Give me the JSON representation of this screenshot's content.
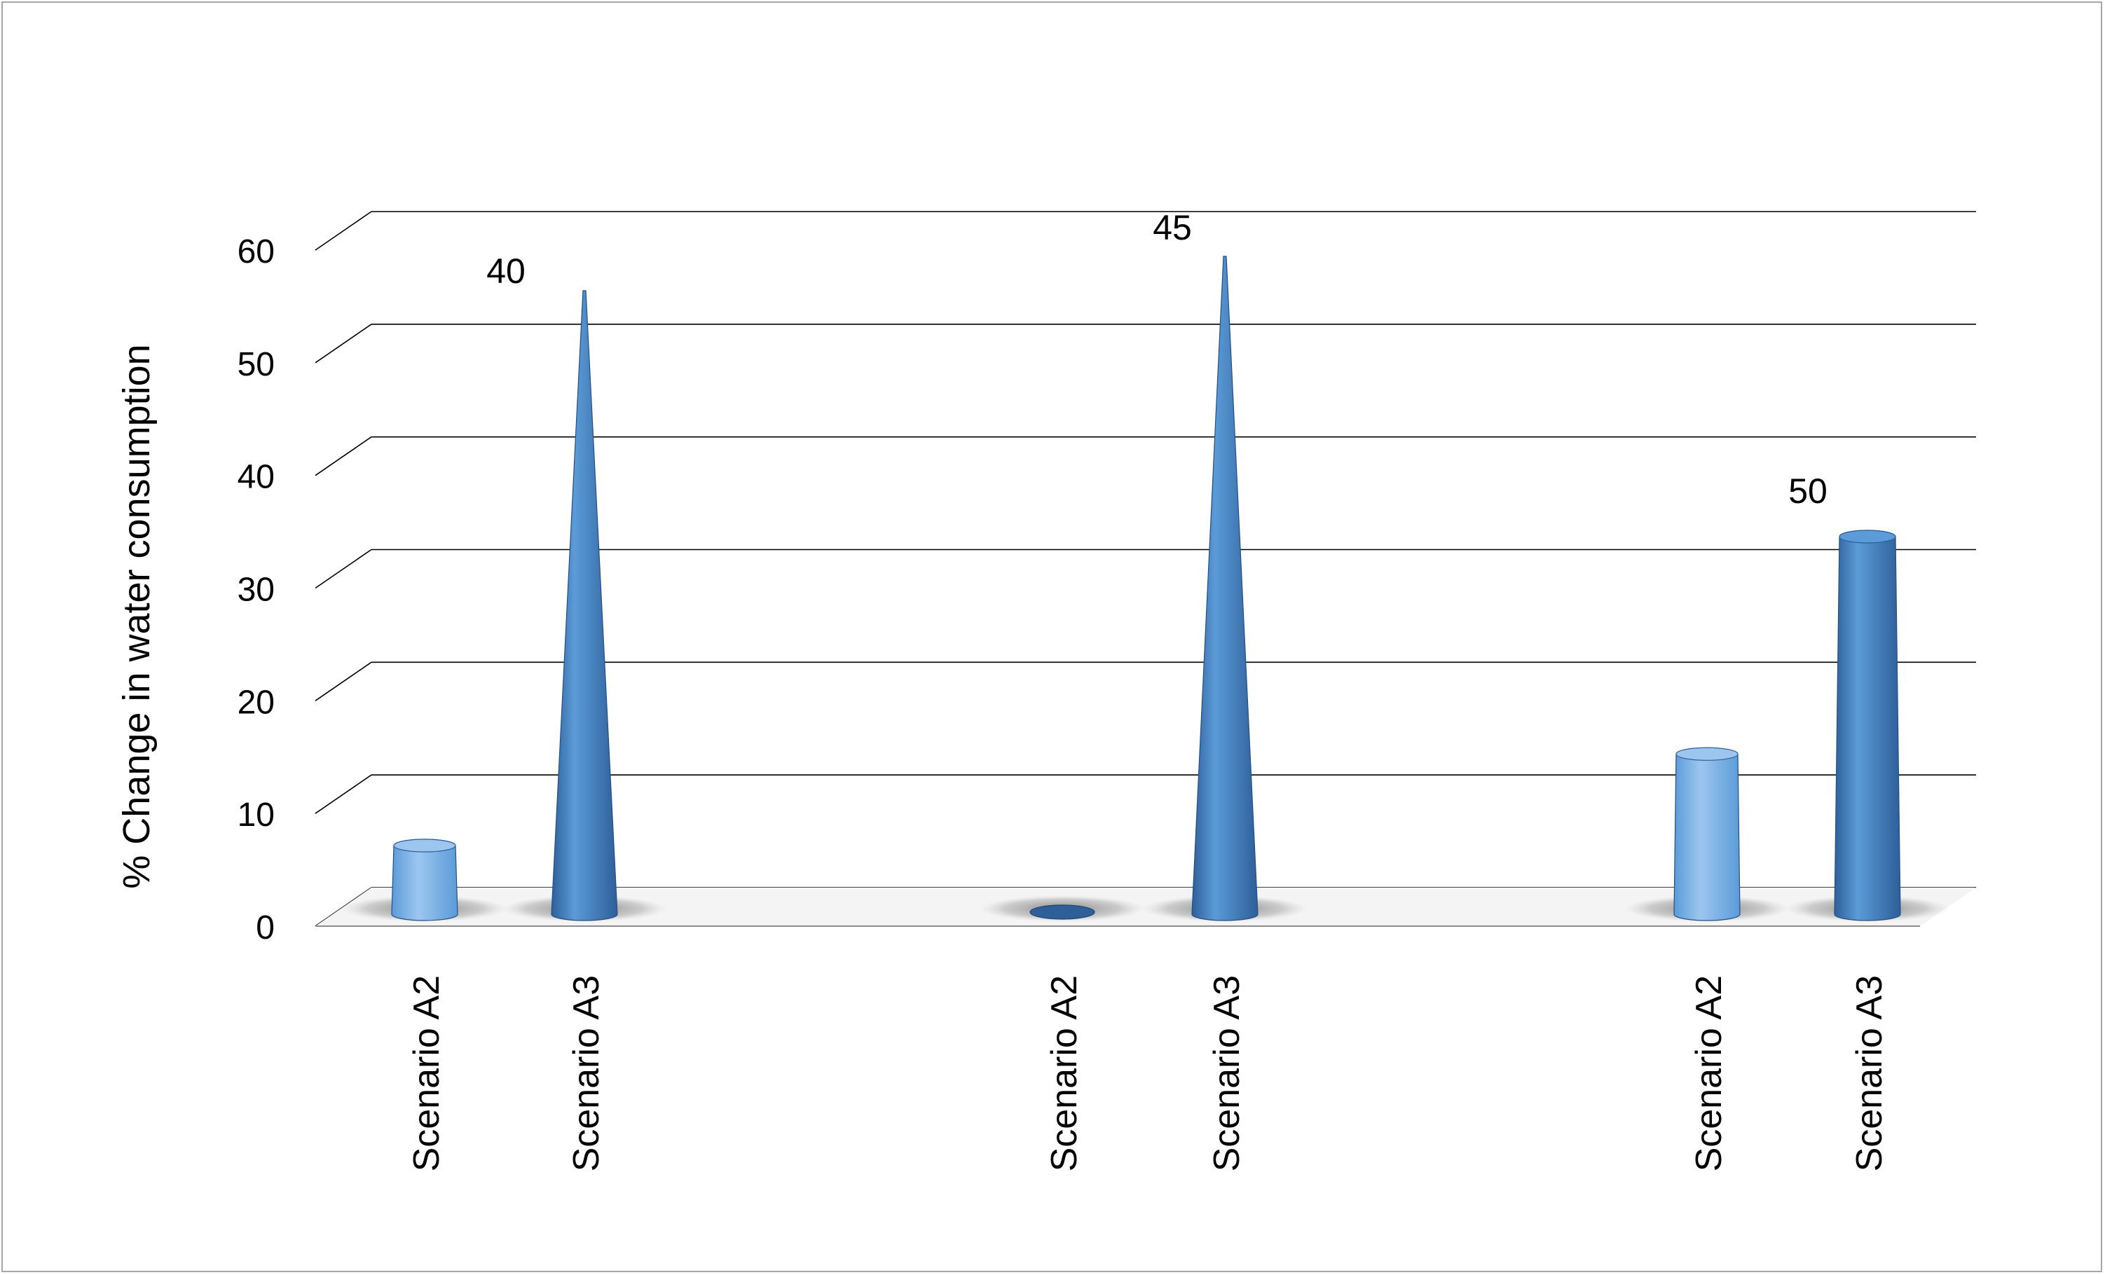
{
  "chart_data": {
    "type": "bar",
    "bar_shape": "cone",
    "ylabel": "% Change in water consumption",
    "ylim": [
      0,
      60
    ],
    "yticks": [
      0,
      10,
      20,
      30,
      40,
      50,
      60
    ],
    "grid": true,
    "groups": [
      {
        "name": "40",
        "bars": [
          {
            "label": "Scenario A2",
            "value": 6.0,
            "shape": "cylinder"
          },
          {
            "label": "Scenario A3",
            "value": 54.5,
            "shape": "cone"
          }
        ]
      },
      {
        "name": "45",
        "bars": [
          {
            "label": "Scenario A2",
            "value": 0.5,
            "shape": "cylinder"
          },
          {
            "label": "Scenario A3",
            "value": 57.5,
            "shape": "cone"
          }
        ]
      },
      {
        "name": "50",
        "bars": [
          {
            "label": "Scenario A2",
            "value": 14.0,
            "shape": "cylinder"
          },
          {
            "label": "Scenario A3",
            "value": 33.0,
            "shape": "cylinder"
          }
        ]
      }
    ],
    "colors": {
      "bar_light": "#9cc6f0",
      "bar_mid": "#5b9bd8",
      "bar_dark": "#2e5f99",
      "grid": "#000000",
      "floor_shadow": "#8c8c8c"
    }
  }
}
